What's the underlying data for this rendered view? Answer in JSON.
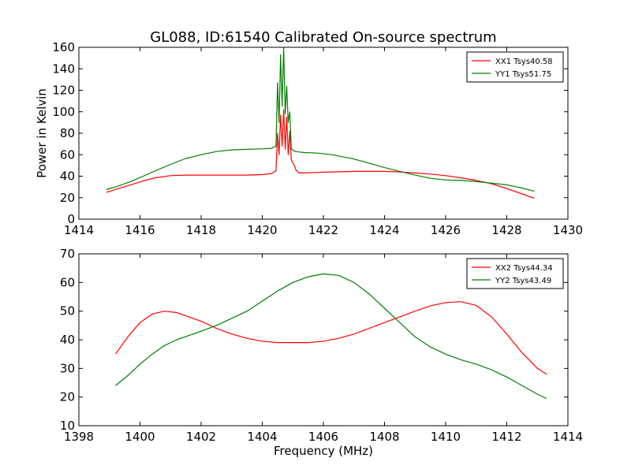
{
  "title": "GL088, ID:61540 Calibrated On-source spectrum",
  "chart_data": [
    {
      "type": "line",
      "ylabel": "Power in Kelvin",
      "xlabel": "",
      "xlim": [
        1414,
        1430
      ],
      "ylim": [
        0,
        160
      ],
      "xticks": [
        "1414",
        "1416",
        "1418",
        "1420",
        "1422",
        "1424",
        "1426",
        "1428",
        "1430"
      ],
      "yticks": [
        "0",
        "20",
        "40",
        "60",
        "80",
        "100",
        "120",
        "140",
        "160"
      ],
      "grid": false,
      "legend_position": "top-right",
      "series": [
        {
          "name": "XX1 Tsys40.58",
          "color": "#ff0000",
          "x": [
            1414.9,
            1415.3,
            1415.7,
            1416.1,
            1416.5,
            1417.0,
            1417.5,
            1418.0,
            1418.5,
            1419.0,
            1419.5,
            1420.0,
            1420.3,
            1420.45,
            1420.5,
            1420.55,
            1420.6,
            1420.65,
            1420.7,
            1420.75,
            1420.8,
            1420.85,
            1420.9,
            1420.95,
            1421.0,
            1421.05,
            1421.1,
            1421.2,
            1421.4,
            1421.8,
            1422.3,
            1423.0,
            1423.5,
            1424.0,
            1424.5,
            1425.0,
            1425.5,
            1426.0,
            1426.5,
            1427.0,
            1427.5,
            1428.0,
            1428.5,
            1428.9
          ],
          "y": [
            25,
            28.5,
            32,
            35.5,
            38.5,
            40.5,
            41,
            41,
            41,
            41,
            41,
            41.5,
            42.5,
            45,
            80,
            60,
            97,
            68,
            102,
            65,
            95,
            60,
            82,
            55,
            52,
            50,
            46,
            43,
            43,
            43.5,
            44,
            44.5,
            44.5,
            44.5,
            44,
            43,
            42,
            40.5,
            38.5,
            36,
            33,
            28.5,
            23.5,
            19.5
          ]
        },
        {
          "name": "YY1 Tsys51.75",
          "color": "#008000",
          "x": [
            1414.9,
            1415.3,
            1415.7,
            1416.1,
            1416.5,
            1417.0,
            1417.5,
            1418.0,
            1418.5,
            1419.0,
            1419.5,
            1420.0,
            1420.3,
            1420.45,
            1420.5,
            1420.55,
            1420.6,
            1420.65,
            1420.7,
            1420.75,
            1420.8,
            1420.85,
            1420.9,
            1420.95,
            1421.0,
            1421.05,
            1421.1,
            1421.2,
            1421.4,
            1421.8,
            1422.3,
            1423.0,
            1423.5,
            1424.0,
            1424.5,
            1425.0,
            1425.5,
            1426.0,
            1426.5,
            1427.0,
            1427.5,
            1428.0,
            1428.5,
            1428.9
          ],
          "y": [
            27.5,
            31,
            35,
            40,
            45,
            51,
            56.5,
            60,
            63,
            64.5,
            65,
            65.5,
            66,
            68,
            127,
            90,
            153,
            105,
            160,
            98,
            124,
            90,
            100,
            66,
            64,
            63.5,
            63,
            62.5,
            62,
            61.5,
            60,
            56,
            52,
            48,
            44.5,
            41,
            38,
            36.5,
            36,
            35,
            33.5,
            32,
            29,
            26
          ]
        }
      ]
    },
    {
      "type": "line",
      "ylabel": "",
      "xlabel": "Frequency (MHz)",
      "xlim": [
        1398,
        1414
      ],
      "ylim": [
        10,
        70
      ],
      "xticks": [
        "1398",
        "1400",
        "1402",
        "1404",
        "1406",
        "1408",
        "1410",
        "1412",
        "1414"
      ],
      "yticks": [
        "10",
        "20",
        "30",
        "40",
        "50",
        "60",
        "70"
      ],
      "grid": false,
      "legend_position": "top-right",
      "series": [
        {
          "name": "XX2 Tsys44.34",
          "color": "#ff0000",
          "x": [
            1399.2,
            1399.6,
            1400.0,
            1400.4,
            1400.8,
            1401.2,
            1401.6,
            1402.0,
            1402.5,
            1403.0,
            1403.5,
            1404.0,
            1404.5,
            1405.0,
            1405.5,
            1406.0,
            1406.5,
            1407.0,
            1407.5,
            1408.0,
            1408.5,
            1409.0,
            1409.5,
            1410.0,
            1410.5,
            1411.0,
            1411.5,
            1412.0,
            1412.5,
            1413.0,
            1413.3
          ],
          "y": [
            35,
            41,
            46,
            49,
            50,
            49.5,
            48,
            46.5,
            44,
            42,
            40.5,
            39.5,
            39,
            39,
            39,
            39.5,
            40.5,
            42,
            44,
            46,
            48,
            50,
            51.8,
            53,
            53.3,
            52,
            48,
            42,
            35.5,
            30,
            28
          ]
        },
        {
          "name": "YY2 Tsys43.49",
          "color": "#008000",
          "x": [
            1399.2,
            1399.6,
            1400.0,
            1400.4,
            1400.8,
            1401.2,
            1401.6,
            1402.0,
            1402.5,
            1403.0,
            1403.5,
            1404.0,
            1404.5,
            1405.0,
            1405.5,
            1406.0,
            1406.5,
            1407.0,
            1407.5,
            1408.0,
            1408.5,
            1409.0,
            1409.5,
            1410.0,
            1410.5,
            1411.0,
            1411.5,
            1412.0,
            1412.5,
            1413.0,
            1413.3
          ],
          "y": [
            24,
            27.5,
            31.5,
            35,
            38,
            40,
            41.5,
            43,
            45,
            47.5,
            50,
            53.5,
            57,
            60,
            62,
            63,
            62.5,
            60,
            56,
            51,
            46,
            41,
            37.5,
            35,
            33,
            31.5,
            29.5,
            27,
            24,
            21,
            19.5
          ]
        }
      ]
    }
  ]
}
